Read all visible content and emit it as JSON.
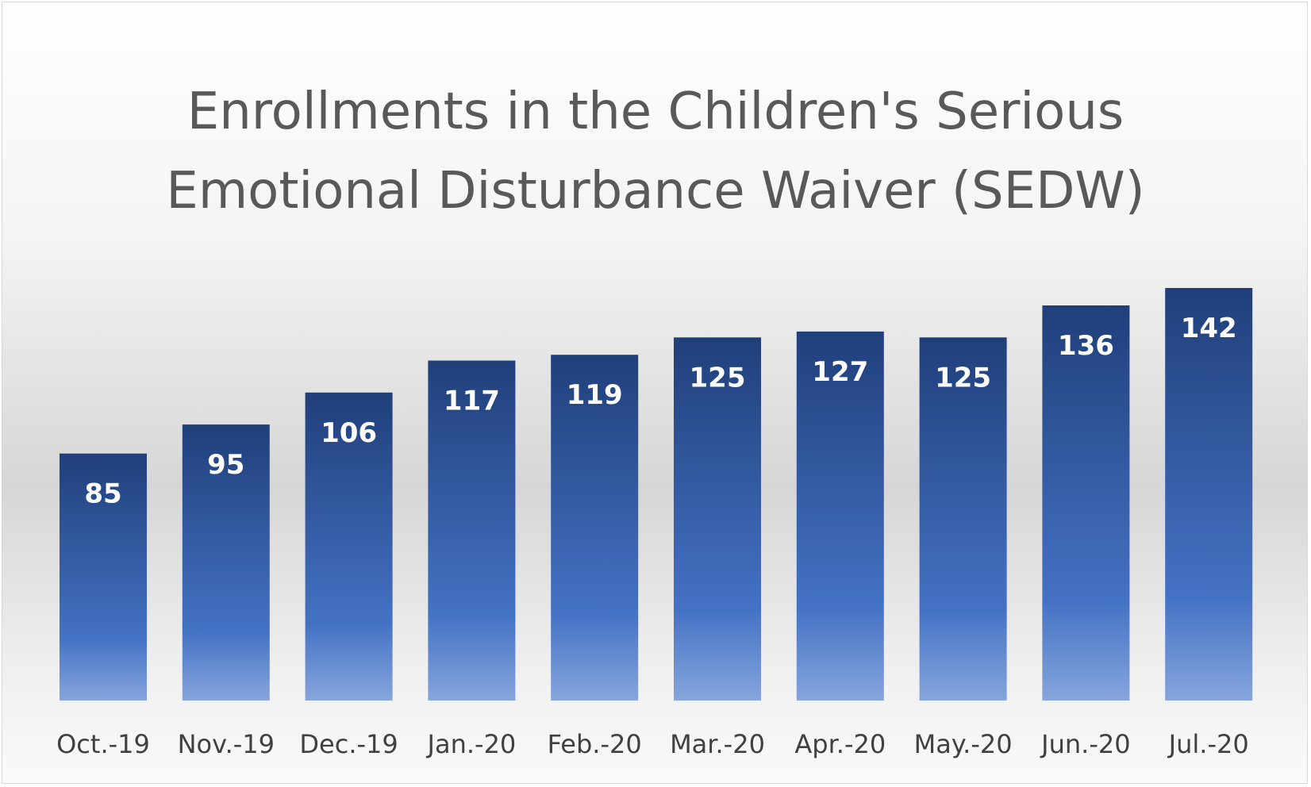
{
  "chart_data": {
    "type": "bar",
    "title": "Enrollments in the Children's Serious\nEmotional Disturbance Waiver (SEDW)",
    "categories": [
      "Oct.-19",
      "Nov.-19",
      "Dec.-19",
      "Jan.-20",
      "Feb.-20",
      "Mar.-20",
      "Apr.-20",
      "May.-20",
      "Jun.-20",
      "Jul.-20"
    ],
    "values": [
      85,
      95,
      106,
      117,
      119,
      125,
      127,
      125,
      136,
      142
    ],
    "data_labels": [
      "85",
      "95",
      "106",
      "117",
      "119",
      "125",
      "127",
      "125",
      "136",
      "142"
    ],
    "ylim": [
      0,
      142
    ],
    "grid": false,
    "legend": "none",
    "colors": {
      "bar_top": "#203f7a",
      "bar_mid": "#4472c4",
      "bar_bottom": "#86a5dc",
      "label": "#ffffff",
      "title": "#595959",
      "axis_text": "#404040"
    }
  }
}
